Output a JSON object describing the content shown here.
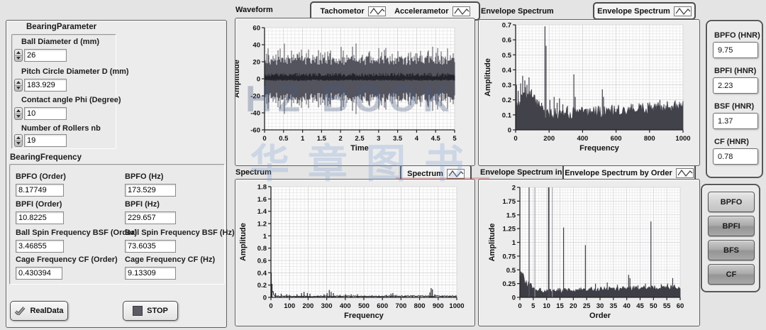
{
  "watermark": {
    "line1": "HZ BOOK",
    "line2": "华章图书"
  },
  "left_panel": {
    "bearing_parameter": {
      "title": "BearingParameter",
      "controls": [
        {
          "label": "Ball Diameter d (mm)",
          "value": "26"
        },
        {
          "label": "Pitch Circle Diameter D (mm)",
          "value": "183.929"
        },
        {
          "label": "Contact angle Phi (Degree)",
          "value": "10"
        },
        {
          "label": "Number of Rollers nb",
          "value": "19"
        }
      ]
    },
    "bearing_frequency": {
      "title": "BearingFrequency",
      "indicators": [
        {
          "label": "BPFO (Order)",
          "value": "8.17749"
        },
        {
          "label": "BPFO (Hz)",
          "value": "173.529"
        },
        {
          "label": "BPFI (Order)",
          "value": "10.8225"
        },
        {
          "label": "BPFI (Hz)",
          "value": "229.657"
        },
        {
          "label": "Ball Spin Frequency BSF (Order)",
          "value": "3.46855"
        },
        {
          "label": "Ball Spin Frequency BSF (Hz)",
          "value": "73.6035"
        },
        {
          "label": "Cage Frequency CF (Order)",
          "value": "0.430394"
        },
        {
          "label": "Cage Frequency CF (Hz)",
          "value": "9.13309"
        }
      ]
    },
    "realdata_button": "RealData",
    "stop_button": "STOP"
  },
  "right_panel": {
    "hnr_indicators": [
      {
        "label": "BPFO (HNR)",
        "value": "9.75"
      },
      {
        "label": "BPFI (HNR)",
        "value": "2.23"
      },
      {
        "label": "BSF (HNR)",
        "value": "1.37"
      },
      {
        "label": "CF (HNR)",
        "value": "0.78"
      }
    ],
    "buttons": [
      {
        "label": "BPFO"
      },
      {
        "label": "BPFI"
      },
      {
        "label": "BFS"
      },
      {
        "label": "CF"
      }
    ]
  },
  "chart_data": [
    {
      "id": "waveform",
      "type": "line",
      "title": "Waveform",
      "legend": [
        {
          "label": "Tachometor"
        },
        {
          "label": "Accelerametor"
        }
      ],
      "xlabel": "Time",
      "ylabel": "Amplitude",
      "xlim": [
        0,
        5
      ],
      "xstep": 0.5,
      "xminor": 0.1,
      "ylim": [
        -60,
        60
      ],
      "ystep": 20,
      "yminor": 4,
      "grid": true,
      "legend_position": "top",
      "seed": 7,
      "series": [
        {
          "name": "Accelerametor",
          "kind": "noise_band",
          "base": 16,
          "spread": 11,
          "burst_prob": 0.35,
          "burst": 14,
          "rare_prob": 0.05,
          "rare": 26,
          "clip": 57,
          "color": "#54545e"
        },
        {
          "name": "Tachometor",
          "kind": "pulse_band",
          "lo_base": -0.8,
          "lo_spread": 1.8,
          "hi_base": 2.5,
          "hi_spread": 4.5,
          "color": "#23232b"
        }
      ],
      "description": "Broadband vibration of ~±25 amplitude with random bursts to ±55 over 0-5 s; dark tachometer pulse band near 0 to +7"
    },
    {
      "id": "envelope",
      "type": "area",
      "title": "Envelope Spectrum",
      "legend": [
        {
          "label": "Envelope Spectrum"
        }
      ],
      "xlabel": "Frequency",
      "ylabel": "Amplitude",
      "xlim": [
        0,
        1000
      ],
      "xstep": 200,
      "xminor": 20,
      "ylim": [
        0,
        0.7
      ],
      "ystep": 0.1,
      "yminor": 0.02,
      "grid": true,
      "legend_position": "top",
      "seed": 11,
      "color": "#42424b",
      "floor": {
        "base": 0.045,
        "slope": 7e-05,
        "noise": 0.085
      },
      "humps": [
        {
          "x": 45,
          "y": 0.14,
          "w": 50
        },
        {
          "x": 95,
          "y": 0.09,
          "w": 40
        }
      ],
      "spikes": [
        [
          5,
          0.3
        ],
        [
          15,
          0.26
        ],
        [
          30,
          0.31
        ],
        [
          42,
          0.36
        ],
        [
          55,
          0.33
        ],
        [
          68,
          0.3
        ],
        [
          80,
          0.35
        ],
        [
          95,
          0.27
        ],
        [
          110,
          0.22
        ],
        [
          130,
          0.2
        ],
        [
          155,
          0.18
        ],
        [
          175,
          0.69
        ],
        [
          182,
          0.56
        ],
        [
          205,
          0.2
        ],
        [
          230,
          0.22
        ],
        [
          248,
          0.18
        ],
        [
          262,
          0.21
        ],
        [
          282,
          0.17
        ],
        [
          310,
          0.16
        ],
        [
          348,
          0.37
        ],
        [
          356,
          0.22
        ],
        [
          400,
          0.13
        ],
        [
          432,
          0.14
        ],
        [
          462,
          0.12
        ],
        [
          492,
          0.13
        ],
        [
          518,
          0.27
        ],
        [
          525,
          0.22
        ],
        [
          560,
          0.13
        ],
        [
          592,
          0.14
        ],
        [
          615,
          0.16
        ],
        [
          650,
          0.14
        ],
        [
          682,
          0.15
        ],
        [
          700,
          0.17
        ],
        [
          732,
          0.14
        ],
        [
          762,
          0.15
        ],
        [
          790,
          0.18
        ],
        [
          820,
          0.15
        ],
        [
          845,
          0.16
        ],
        [
          862,
          0.2
        ],
        [
          886,
          0.17
        ],
        [
          906,
          0.19
        ],
        [
          932,
          0.16
        ],
        [
          952,
          0.19
        ],
        [
          976,
          0.17
        ],
        [
          992,
          0.16
        ]
      ]
    },
    {
      "id": "spectrum",
      "type": "line",
      "title": "Spectrum",
      "legend": [
        {
          "label": "Spectrum"
        }
      ],
      "xlabel": "Frequency",
      "ylabel": "Amplitude",
      "xlim": [
        0,
        1000
      ],
      "xstep": 100,
      "xminor": 20,
      "ylim": [
        0,
        1.8
      ],
      "ystep": 0.2,
      "yminor": 0.05,
      "grid": true,
      "legend_position": "top",
      "seed": 23,
      "color": "#2d2d34",
      "floor": {
        "base": 0.008,
        "slope": 4e-06,
        "noise": 0.016
      },
      "humps": [
        {
          "x": 0,
          "y": 0.18,
          "w": 9
        }
      ],
      "spikes": [
        [
          2,
          0.4
        ],
        [
          6,
          0.22
        ],
        [
          25,
          0.07
        ],
        [
          55,
          0.06
        ],
        [
          85,
          0.05
        ],
        [
          100,
          0.04
        ],
        [
          140,
          0.05
        ],
        [
          165,
          0.07
        ],
        [
          178,
          0.09
        ],
        [
          196,
          0.07
        ],
        [
          210,
          0.06
        ],
        [
          252,
          0.03
        ],
        [
          286,
          0.05
        ],
        [
          302,
          0.07
        ],
        [
          314,
          0.12
        ],
        [
          324,
          0.09
        ],
        [
          336,
          0.07
        ],
        [
          372,
          0.04
        ],
        [
          402,
          0.05
        ],
        [
          432,
          0.05
        ],
        [
          466,
          0.05
        ],
        [
          502,
          0.03
        ],
        [
          542,
          0.03
        ],
        [
          582,
          0.03
        ],
        [
          622,
          0.04
        ],
        [
          646,
          0.06
        ],
        [
          656,
          0.07
        ],
        [
          672,
          0.04
        ],
        [
          722,
          0.03
        ],
        [
          762,
          0.03
        ],
        [
          802,
          0.03
        ],
        [
          855,
          0.08
        ],
        [
          862,
          0.15
        ],
        [
          869,
          0.13
        ],
        [
          882,
          0.05
        ],
        [
          922,
          0.02
        ],
        [
          962,
          0.02
        ]
      ]
    },
    {
      "id": "order",
      "type": "area",
      "title": "Envelope Spectrum in order",
      "legend": [
        {
          "label": "Envelope Spectrum by Order"
        }
      ],
      "xlabel": "Order",
      "ylabel": "Amplitude",
      "xlim": [
        0,
        60
      ],
      "xstep": 5,
      "xminor": 1,
      "ylim": [
        0,
        2
      ],
      "ystep": 0.25,
      "yminor": 0.05,
      "grid": true,
      "legend_position": "top",
      "seed": 31,
      "color": "#3e3e47",
      "floor": {
        "base": 0.06,
        "slope": 0.0013,
        "noise": 0.09
      },
      "humps": [
        {
          "x": 0.5,
          "y": 0.3,
          "w": 0.7
        },
        {
          "x": 1.8,
          "y": 0.13,
          "w": 1.6
        },
        {
          "x": 4,
          "y": 0.08,
          "w": 2
        }
      ],
      "spikes": [
        [
          0.35,
          0.47
        ],
        [
          1.1,
          0.4
        ],
        [
          16.35,
          1.27
        ],
        [
          24.53,
          0.95
        ],
        [
          28.3,
          0.25
        ],
        [
          32.7,
          0.27
        ],
        [
          36.5,
          0.23
        ],
        [
          40.7,
          0.41
        ],
        [
          41.2,
          0.35
        ],
        [
          44.2,
          0.22
        ],
        [
          47,
          0.25
        ],
        [
          49.05,
          1.38
        ],
        [
          52.9,
          0.24
        ],
        [
          55.3,
          0.25
        ],
        [
          57.2,
          0.35
        ]
      ],
      "vlines": [
        {
          "x": 3.45,
          "w": 1.3,
          "color": "#5a5a64"
        },
        {
          "x": 5.6,
          "w": 1,
          "color": "#9b9ba3"
        },
        {
          "x": 10.8,
          "w": 2,
          "color": "#4b4b54"
        },
        {
          "x": 12.15,
          "w": 1,
          "color": "#9b9ba3"
        }
      ]
    }
  ]
}
